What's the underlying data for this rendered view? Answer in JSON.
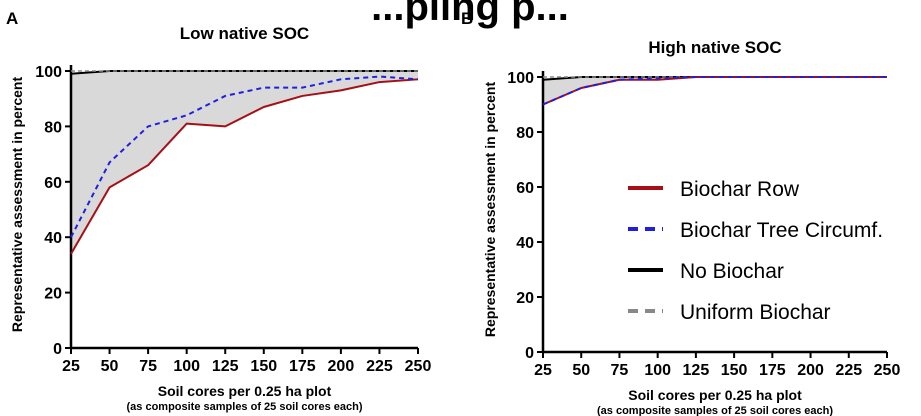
{
  "overhead_text": "...pling p...",
  "colors": {
    "biochar_row": "#a50f15",
    "biochar_tree": "#1f1fe0",
    "no_biochar": "#000000",
    "uniform_biochar": "#888888",
    "fill": "#d9d9d9"
  },
  "chart_data": [
    {
      "panel": "A",
      "type": "line",
      "title": "Low native SOC",
      "xlabel": "Soil cores per 0.25 ha plot",
      "xlabel_sub": "(as composite samples of  25 soil cores each)",
      "ylabel": "Representative assessment in percent",
      "xlim": [
        25,
        250
      ],
      "ylim": [
        0,
        100
      ],
      "xticks": [
        25,
        50,
        75,
        100,
        125,
        150,
        175,
        200,
        225,
        250
      ],
      "yticks": [
        0,
        20,
        40,
        60,
        80,
        100
      ],
      "x": [
        25,
        50,
        75,
        100,
        125,
        150,
        175,
        200,
        225,
        250
      ],
      "series": [
        {
          "key": "biochar_row",
          "values": [
            34,
            58,
            66,
            81,
            80,
            87,
            91,
            93,
            96,
            97
          ]
        },
        {
          "key": "biochar_tree",
          "values": [
            40,
            67,
            80,
            84,
            91,
            94,
            94,
            97,
            98,
            97
          ]
        },
        {
          "key": "no_biochar",
          "values": [
            99,
            100,
            100,
            100,
            100,
            100,
            100,
            100,
            100,
            100
          ]
        },
        {
          "key": "uniform_biochar",
          "values": [
            100,
            100,
            100,
            100,
            100,
            100,
            100,
            100,
            100,
            100
          ]
        }
      ],
      "shade_between": [
        "biochar_row",
        "no_biochar"
      ]
    },
    {
      "panel": "B",
      "type": "line",
      "title": "High native SOC",
      "xlabel": "Soil cores per 0.25 ha plot",
      "xlabel_sub": "(as composite samples of  25 soil cores each)",
      "ylabel": "Representative assessment in percent",
      "xlim": [
        25,
        250
      ],
      "ylim": [
        0,
        100
      ],
      "xticks": [
        25,
        50,
        75,
        100,
        125,
        150,
        175,
        200,
        225,
        250
      ],
      "yticks": [
        0,
        20,
        40,
        60,
        80,
        100
      ],
      "x": [
        25,
        50,
        75,
        100,
        125,
        150,
        175,
        200,
        225,
        250
      ],
      "series": [
        {
          "key": "biochar_row",
          "values": [
            90,
            96,
            99,
            99,
            100,
            100,
            100,
            100,
            100,
            100
          ]
        },
        {
          "key": "biochar_tree",
          "values": [
            90,
            96,
            99,
            99.5,
            100,
            100,
            100,
            100,
            100,
            100
          ]
        },
        {
          "key": "no_biochar",
          "values": [
            99,
            100,
            100,
            100,
            100,
            100,
            100,
            100,
            100,
            100
          ]
        },
        {
          "key": "uniform_biochar",
          "values": [
            100,
            100,
            100,
            100,
            100,
            100,
            100,
            100,
            100,
            100
          ]
        }
      ],
      "shade_between": [
        "biochar_row",
        "no_biochar"
      ],
      "legend": [
        {
          "key": "biochar_row",
          "label": "Biochar Row"
        },
        {
          "key": "biochar_tree",
          "label": "Biochar Tree Circumf."
        },
        {
          "key": "no_biochar",
          "label": "No Biochar"
        },
        {
          "key": "uniform_biochar",
          "label": "Uniform Biochar"
        }
      ]
    }
  ]
}
